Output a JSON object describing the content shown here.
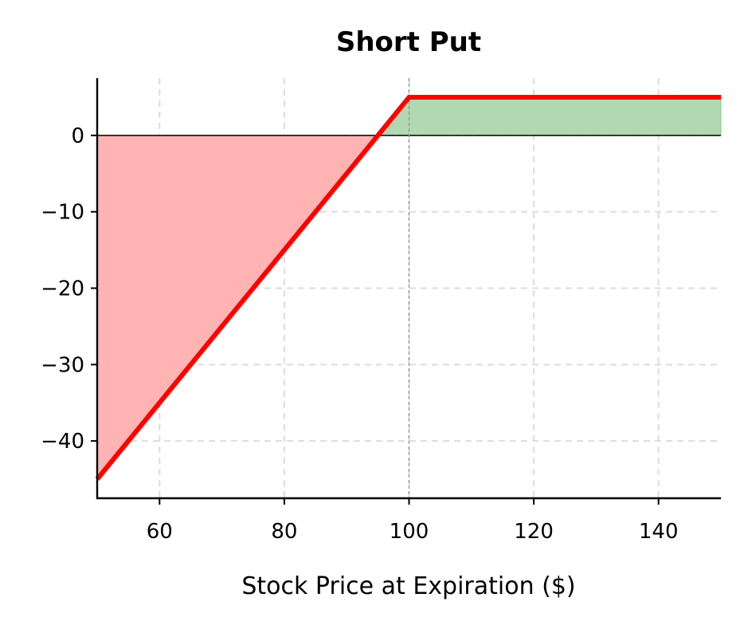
{
  "chart_data": {
    "type": "line",
    "title": "Short Put",
    "xlabel": "Stock Price at Expiration ($)",
    "ylabel": "",
    "xlim": [
      50,
      150
    ],
    "ylim": [
      -47.5,
      7.5
    ],
    "xticks": [
      60,
      80,
      100,
      120,
      140
    ],
    "yticks": [
      0,
      -10,
      -20,
      -30,
      -40
    ],
    "xtick_labels": [
      "60",
      "80",
      "100",
      "120",
      "140"
    ],
    "ytick_labels": [
      "0",
      "−10",
      "−20",
      "−30",
      "−40"
    ],
    "grid": true,
    "strike": 100,
    "premium": 5,
    "series": [
      {
        "x": [
          50,
          95,
          100,
          150
        ],
        "y": [
          -45,
          0,
          5,
          5
        ]
      }
    ],
    "colors": {
      "payoff_line": "#ff0000",
      "loss_fill": "#ffb3b3",
      "profit_fill": "#b2d8b2",
      "profit_fill_edge": "#8fc48f",
      "zero_line": "#000000",
      "strike_line": "#999999",
      "grid": "#dddddd"
    }
  }
}
